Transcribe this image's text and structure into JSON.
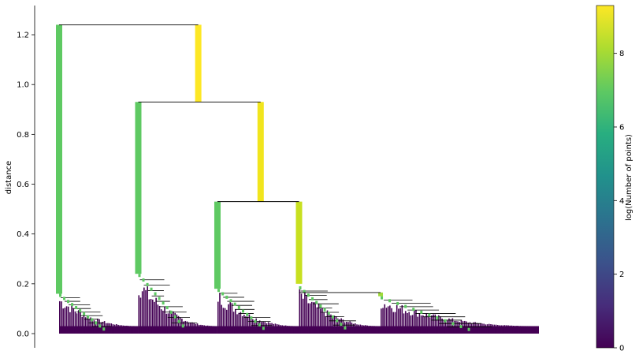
{
  "chart_data": {
    "type": "dendrogram",
    "ylabel": "distance",
    "ylim": [
      0,
      1.3
    ],
    "y_ticks": [
      "0.0",
      "0.2",
      "0.4",
      "0.6",
      "0.8",
      "1.0",
      "1.2"
    ],
    "y_tick_values": [
      0,
      0.2,
      0.4,
      0.6,
      0.8,
      1.0,
      1.2
    ],
    "grid": false,
    "merges": [
      {
        "x_left": 0.0,
        "x_right": 0.29,
        "height": 1.24,
        "left_color": "#5ec962",
        "right_color": "#fde725"
      },
      {
        "x_left": 0.165,
        "x_right": 0.42,
        "height": 0.93,
        "left_color": "#5ec962",
        "right_color": "#f1e51d"
      },
      {
        "x_left": 0.33,
        "x_right": 0.5,
        "height": 0.53,
        "left_color": "#5ec962",
        "right_color": "#c8e020"
      },
      {
        "x_left": 0.5,
        "x_right": 0.67,
        "height": 0.165,
        "left_color": "#c8e020",
        "right_color": "#9fda3a"
      }
    ],
    "leaf_clusters": [
      {
        "x_start": 0.0,
        "x_end": 0.165,
        "top": 0.16
      },
      {
        "x_start": 0.165,
        "x_end": 0.33,
        "top": 0.24
      },
      {
        "x_start": 0.33,
        "x_end": 0.5,
        "top": 0.18
      },
      {
        "x_start": 0.5,
        "x_end": 0.67,
        "top": 0.19
      },
      {
        "x_start": 0.67,
        "x_end": 1.0,
        "top": 0.15
      }
    ],
    "colorbar": {
      "label": "log(Number of points)",
      "ticks": [
        "0",
        "2",
        "4",
        "6",
        "8"
      ],
      "tick_values": [
        0,
        2,
        4,
        6,
        8
      ],
      "range": [
        0,
        9.3
      ],
      "colormap": "viridis",
      "colors": [
        "#440154",
        "#472d7b",
        "#3b528b",
        "#2c728e",
        "#21918c",
        "#28ae80",
        "#5ec962",
        "#addc30",
        "#fde725"
      ]
    }
  }
}
